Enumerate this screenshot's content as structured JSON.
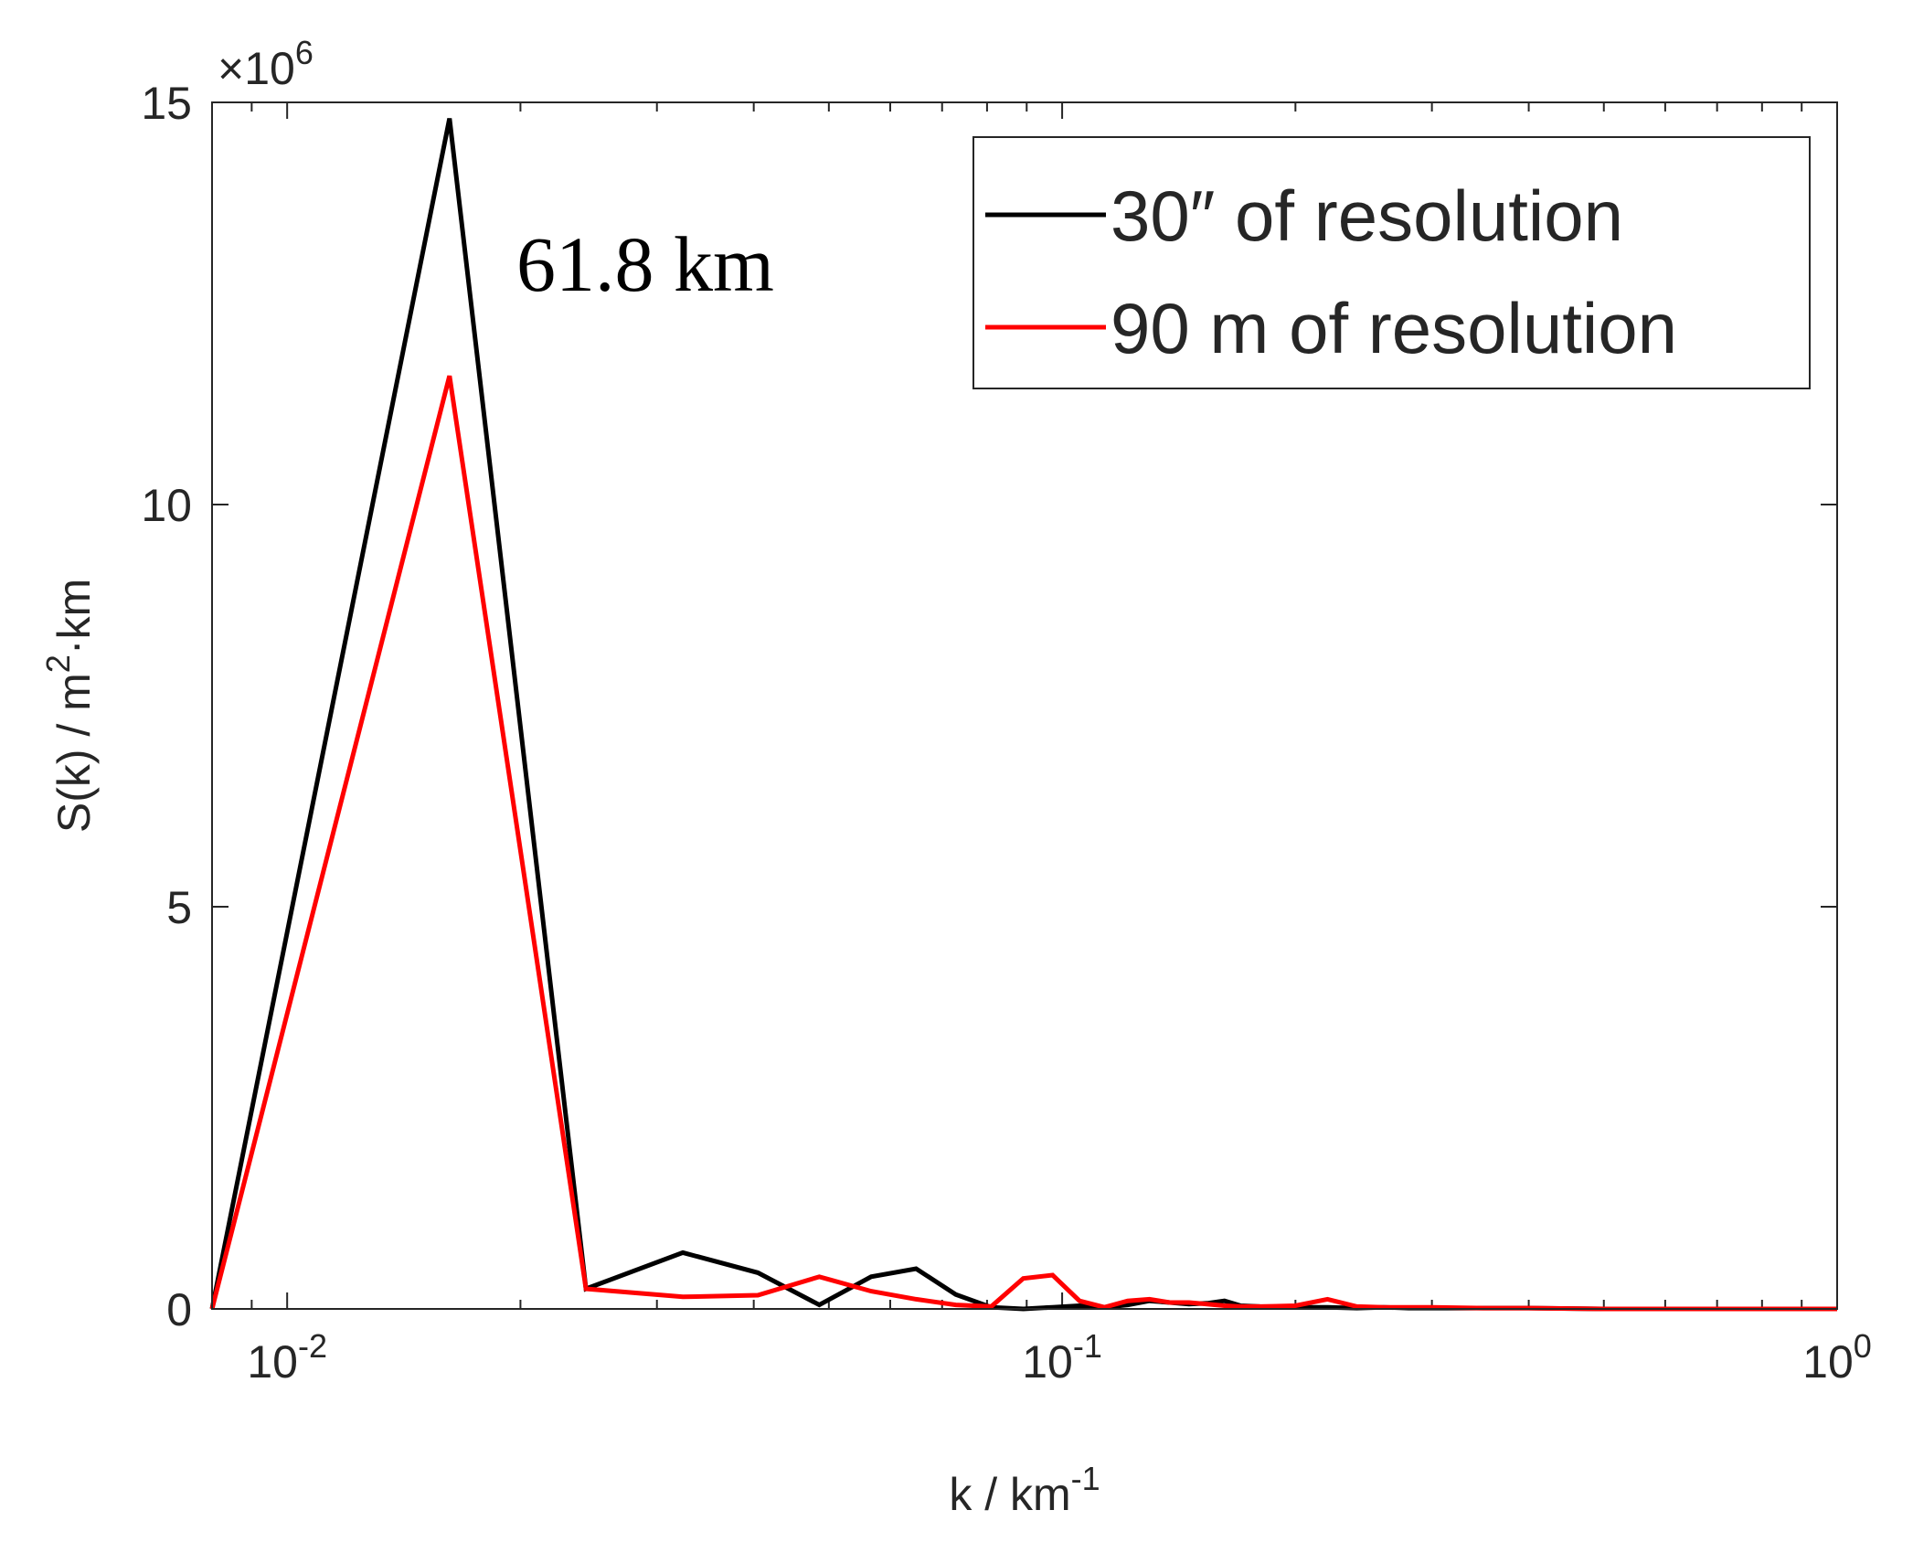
{
  "chart_data": {
    "type": "line",
    "xscale": "log",
    "xlim": [
      0.008,
      1
    ],
    "ylim": [
      0,
      15
    ],
    "y_multiplier_label": "×10",
    "y_multiplier_exponent": "6",
    "xlabel": "k / km",
    "xlabel_superscript": "-1",
    "ylabel": "S(k) / m",
    "ylabel_superscript": "2",
    "ylabel_suffix": "·km",
    "x_ticks": [
      {
        "value": 0.01,
        "base": "10",
        "exp": "-2"
      },
      {
        "value": 0.1,
        "base": "10",
        "exp": "-1"
      },
      {
        "value": 1,
        "base": "10",
        "exp": "0"
      }
    ],
    "y_ticks": [
      {
        "value": 0,
        "label": "0"
      },
      {
        "value": 5,
        "label": "5"
      },
      {
        "value": 10,
        "label": "10"
      },
      {
        "value": 15,
        "label": "15"
      }
    ],
    "annotation": {
      "text": "61.8 km",
      "x": 0.0162,
      "y": 13
    },
    "legend_position": "top-right",
    "series": [
      {
        "name": "30″ of resolution",
        "color": "#000000",
        "x": [
          0.008,
          0.0162,
          0.0243,
          0.0324,
          0.0405,
          0.0486,
          0.0567,
          0.0648,
          0.0729,
          0.081,
          0.0891,
          0.0972,
          0.1053,
          0.1134,
          0.1215,
          0.1296,
          0.1377,
          0.1458,
          0.1539,
          0.162,
          0.17,
          0.18,
          0.2,
          0.22,
          0.24,
          0.26,
          0.28,
          0.3,
          0.35,
          0.4,
          0.5,
          0.6,
          0.8,
          1.0
        ],
        "values": [
          0,
          14.8,
          0.25,
          0.7,
          0.45,
          0.05,
          0.4,
          0.5,
          0.18,
          0.02,
          0.0,
          0.02,
          0.04,
          0.02,
          0.05,
          0.1,
          0.08,
          0.06,
          0.07,
          0.1,
          0.04,
          0.03,
          0.02,
          0.02,
          0.01,
          0.02,
          0.01,
          0.01,
          0.01,
          0.01,
          0.0,
          0.0,
          0.0,
          0.0
        ]
      },
      {
        "name": "90 m of resolution",
        "color": "#ff0000",
        "x": [
          0.008,
          0.0162,
          0.0243,
          0.0324,
          0.0405,
          0.0486,
          0.0567,
          0.0648,
          0.0729,
          0.081,
          0.0891,
          0.0972,
          0.1053,
          0.1134,
          0.1215,
          0.1296,
          0.1377,
          0.1458,
          0.1539,
          0.162,
          0.17,
          0.18,
          0.2,
          0.22,
          0.24,
          0.26,
          0.28,
          0.3,
          0.35,
          0.4,
          0.5,
          0.6,
          0.8,
          1.0
        ],
        "values": [
          0,
          11.6,
          0.25,
          0.15,
          0.17,
          0.4,
          0.22,
          0.12,
          0.05,
          0.03,
          0.38,
          0.42,
          0.1,
          0.02,
          0.1,
          0.12,
          0.08,
          0.08,
          0.06,
          0.04,
          0.03,
          0.03,
          0.04,
          0.12,
          0.03,
          0.02,
          0.02,
          0.02,
          0.01,
          0.01,
          0.0,
          0.0,
          0.0,
          0.0
        ]
      }
    ]
  }
}
